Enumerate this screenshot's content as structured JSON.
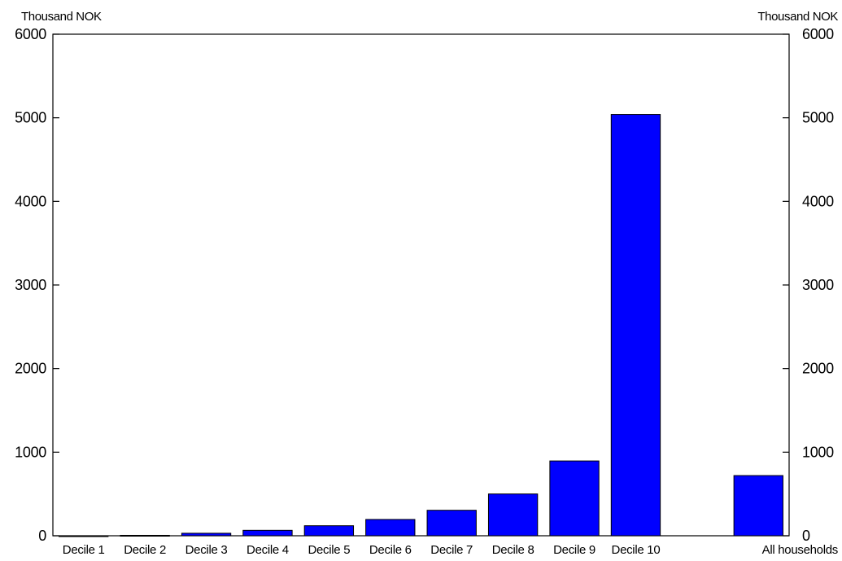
{
  "chart_data": {
    "type": "bar",
    "categories": [
      "Decile 1",
      "Decile 2",
      "Decile 3",
      "Decile 4",
      "Decile 5",
      "Decile 6",
      "Decile 7",
      "Decile 8",
      "Decile 9",
      "Decile 10",
      "",
      "All households"
    ],
    "values": [
      0,
      5,
      30,
      65,
      120,
      195,
      305,
      500,
      895,
      5040,
      null,
      720
    ],
    "y_axis_label_left": "Thousand NOK",
    "y_axis_label_right": "Thousand NOK",
    "ylim": [
      0,
      6000
    ],
    "yticks": [
      0,
      1000,
      2000,
      3000,
      4000,
      5000,
      6000
    ],
    "title": "",
    "xlabel": "",
    "ylabel": "",
    "grid": false,
    "legend": "none",
    "bar_color": "#0000FF",
    "axes_color": "#000000"
  }
}
